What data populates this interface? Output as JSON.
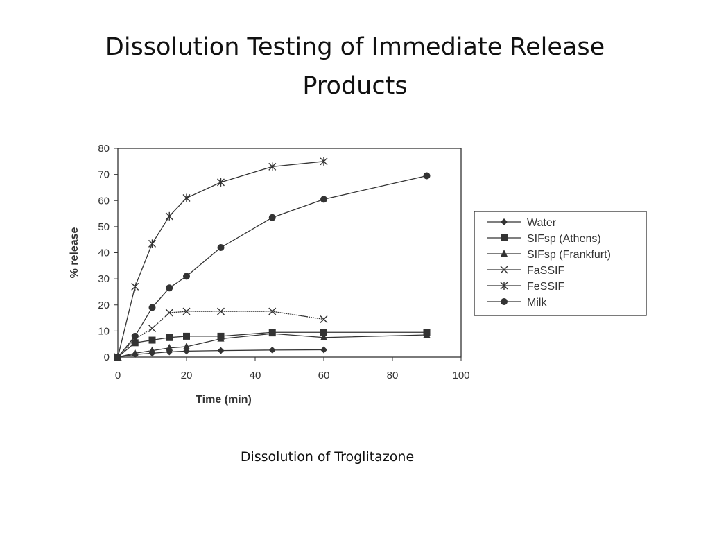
{
  "slide": {
    "title_line1": "Dissolution Testing of Immediate Release",
    "title_line2": "Products",
    "caption": "Dissolution of Troglitazone"
  },
  "chart_data": {
    "type": "line",
    "title": "",
    "xlabel": "Time (min)",
    "ylabel": "% release",
    "xlim": [
      0,
      100
    ],
    "ylim": [
      0,
      80
    ],
    "xticks": [
      0,
      20,
      40,
      60,
      80,
      100
    ],
    "yticks": [
      0,
      10,
      20,
      30,
      40,
      50,
      60,
      70,
      80
    ],
    "grid": false,
    "legend_position": "right",
    "line_color": "#333333",
    "series": [
      {
        "name": "Water",
        "marker": "diamond",
        "x": [
          0,
          5,
          10,
          15,
          20,
          30,
          45,
          60
        ],
        "y": [
          0,
          1,
          1.5,
          2,
          2.3,
          2.5,
          2.7,
          2.8
        ]
      },
      {
        "name": "SIFsp (Athens)",
        "marker": "square",
        "x": [
          0,
          5,
          10,
          15,
          20,
          30,
          45,
          60,
          90
        ],
        "y": [
          0,
          5.5,
          6.5,
          7.5,
          8,
          8,
          9.5,
          9.5,
          9.5
        ]
      },
      {
        "name": "SIFsp (Frankfurt)",
        "marker": "triangle",
        "x": [
          0,
          5,
          10,
          15,
          20,
          30,
          45,
          60,
          90
        ],
        "y": [
          0,
          1.5,
          2.5,
          3.5,
          4,
          7,
          9,
          7.5,
          8.5
        ]
      },
      {
        "name": "FaSSIF",
        "marker": "x",
        "x": [
          0,
          5,
          10,
          15,
          20,
          30,
          45,
          60
        ],
        "y": [
          0,
          7,
          11,
          17,
          17.5,
          17.5,
          17.5,
          14.5
        ]
      },
      {
        "name": "FeSSIF",
        "marker": "star",
        "x": [
          0,
          5,
          10,
          15,
          20,
          30,
          45,
          60
        ],
        "y": [
          0,
          27,
          43.5,
          54,
          61,
          67,
          73,
          75
        ]
      },
      {
        "name": "Milk",
        "marker": "circle",
        "x": [
          0,
          5,
          10,
          15,
          20,
          30,
          45,
          60,
          90
        ],
        "y": [
          0,
          8,
          19,
          26.5,
          31,
          42,
          53.5,
          60.5,
          69.5
        ]
      }
    ]
  }
}
